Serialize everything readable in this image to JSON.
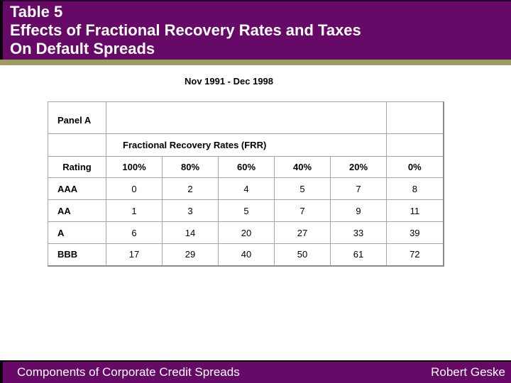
{
  "slide": {
    "title_lines": [
      "Table 5",
      "Effects of Fractional Recovery Rates and Taxes",
      "On Default Spreads"
    ],
    "subtitle": "Nov 1991 - Dec 1998",
    "footer": {
      "left": "Components of Corporate Credit Spreads",
      "right": "Robert Geske"
    }
  },
  "colors": {
    "header_purple": "#670A67",
    "accent_olive": "#9C9B62",
    "footer_purple": "#670A67",
    "table_border": "#A6A6A6",
    "table_shadow": "#8C8C8C",
    "title_text": "#FFFFFF",
    "body_text": "#000000"
  },
  "table": {
    "panel_label": "Panel A",
    "group_header": "Fractional Recovery Rates (FRR)",
    "columns": [
      "Rating",
      "100%",
      "80%",
      "60%",
      "40%",
      "20%",
      "0%"
    ],
    "rows": [
      {
        "rating": "AAA",
        "values": [
          0,
          2,
          4,
          5,
          7,
          8
        ]
      },
      {
        "rating": "AA",
        "values": [
          1,
          3,
          5,
          7,
          9,
          11
        ]
      },
      {
        "rating": "A",
        "values": [
          6,
          14,
          20,
          27,
          33,
          39
        ]
      },
      {
        "rating": "BBB",
        "values": [
          17,
          29,
          40,
          50,
          61,
          72
        ]
      }
    ]
  }
}
